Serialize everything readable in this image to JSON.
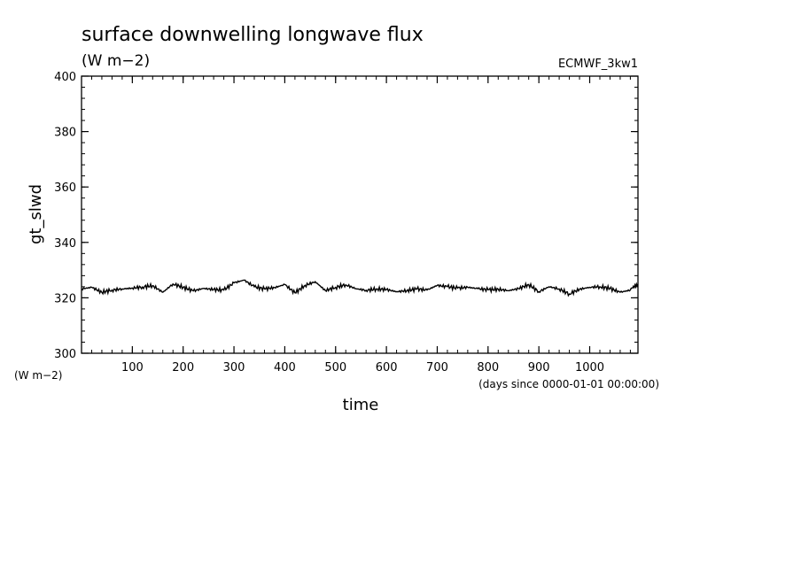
{
  "chart_data": {
    "type": "line",
    "title": "surface downwelling longwave flux",
    "title_units": "(W m−2)",
    "source_label": "ECMWF_3kw1",
    "xlabel": "time",
    "xunits": "(days since 0000-01-01 00:00:00)",
    "ylabel": "gt_slwd",
    "yunits": "(W m−2)",
    "xlim": [
      0,
      1095
    ],
    "ylim": [
      300,
      400
    ],
    "xticks": [
      100,
      200,
      300,
      400,
      500,
      600,
      700,
      800,
      900,
      1000
    ],
    "yticks": [
      300,
      320,
      340,
      360,
      380,
      400
    ],
    "grid": false,
    "series": [
      {
        "x": [
          0,
          20,
          40,
          60,
          80,
          100,
          120,
          140,
          160,
          180,
          200,
          220,
          240,
          260,
          280,
          300,
          320,
          340,
          360,
          380,
          400,
          420,
          440,
          460,
          480,
          500,
          520,
          540,
          560,
          580,
          600,
          620,
          640,
          660,
          680,
          700,
          720,
          740,
          760,
          780,
          800,
          820,
          840,
          860,
          880,
          900,
          920,
          940,
          960,
          980,
          1000,
          1020,
          1040,
          1060,
          1080,
          1095
        ],
        "values": [
          323.2,
          323.8,
          322.0,
          322.8,
          323.2,
          323.5,
          323.9,
          324.4,
          322.0,
          325.0,
          323.8,
          322.5,
          323.4,
          323.0,
          322.8,
          325.4,
          326.4,
          324.0,
          323.2,
          323.7,
          324.8,
          321.8,
          324.5,
          325.8,
          322.6,
          323.8,
          324.7,
          323.3,
          322.7,
          323.2,
          323.0,
          322.2,
          322.6,
          323.2,
          322.8,
          324.5,
          324.0,
          323.5,
          323.8,
          323.3,
          322.9,
          323.1,
          322.6,
          323.3,
          324.8,
          322.2,
          324.0,
          323.2,
          321.4,
          323.1,
          323.8,
          324.0,
          323.4,
          322.0,
          322.8,
          325.0
        ]
      }
    ]
  }
}
